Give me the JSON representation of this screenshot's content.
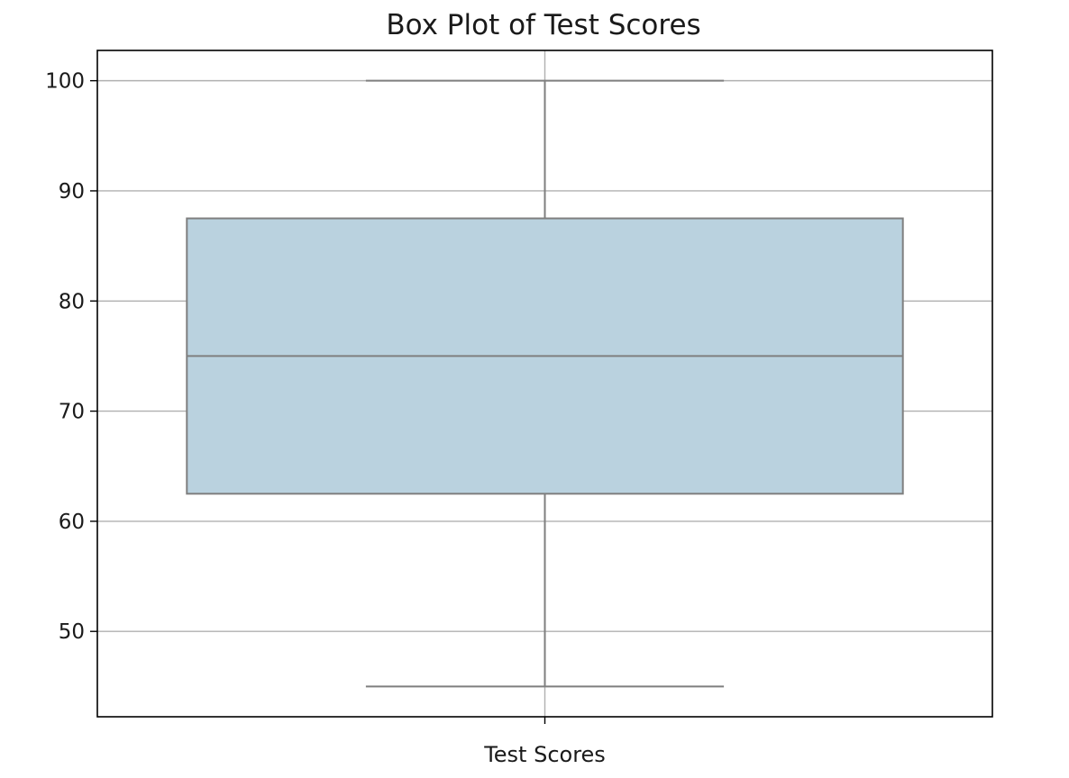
{
  "chart_data": {
    "type": "box",
    "title": "Box Plot of Test Scores",
    "xlabel": "",
    "ylabel": "",
    "categories": [
      "Test Scores"
    ],
    "boxes": [
      {
        "category": "Test Scores",
        "min": 45,
        "q1": 62.5,
        "median": 75,
        "q3": 87.5,
        "max": 100
      }
    ],
    "yticks": [
      50,
      60,
      70,
      80,
      90,
      100
    ],
    "ylim": [
      42.25,
      102.75
    ],
    "grid": true,
    "legend": "none",
    "colors": {
      "box_fill": "#bad2df",
      "box_edge": "#7f7f7f",
      "grid": "#b0b0b0",
      "frame": "#000000"
    }
  }
}
